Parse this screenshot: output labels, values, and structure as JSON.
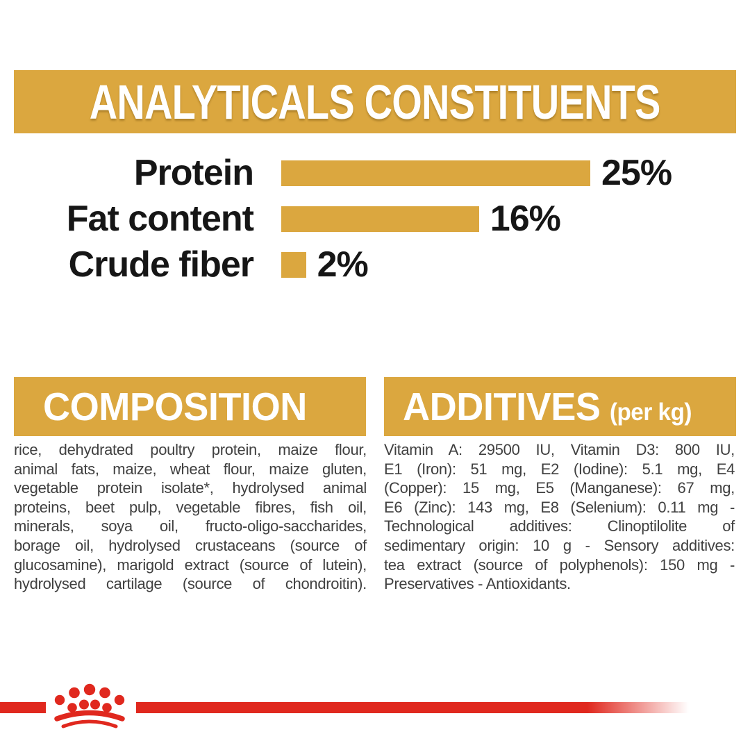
{
  "analyticals": {
    "title": "ANALYTICALS CONSTITUENTS"
  },
  "chart_data": {
    "type": "bar",
    "orientation": "horizontal",
    "categories": [
      "Protein",
      "Fat content",
      "Crude fiber"
    ],
    "values": [
      25,
      16,
      2
    ],
    "value_labels": [
      "25%",
      "16%",
      "2%"
    ],
    "unit": "%",
    "xlim": [
      0,
      28
    ],
    "bar_color": "#DBA73F",
    "grid": false,
    "legend": false
  },
  "composition": {
    "heading": "COMPOSITION",
    "lines": [
      "rice, dehydrated poultry protein, maize flour,",
      "animal fats, maize, wheat flour, maize gluten,",
      "vegetable protein isolate*, hydrolysed animal",
      "proteins, beet pulp, vegetable fibres, fish oil,",
      "minerals, soya oil, fructo-oligo-saccharides,",
      "borage oil, hydrolysed crustaceans (source of",
      "glucosamine), marigold extract (source of lutein),",
      "hydrolysed cartilage (source of chondroitin)."
    ]
  },
  "additives": {
    "heading": "ADDITIVES",
    "heading_suffix": "(per kg)",
    "lines": [
      "Vitamin A: 29500 IU, Vitamin D3: 800 IU,",
      "E1 (Iron): 51 mg, E2 (Iodine): 5.1 mg, E4",
      "(Copper): 15 mg, E5 (Manganese): 67 mg,",
      "E6 (Zinc): 143 mg, E8 (Selenium): 0.11 mg -",
      "Technological additives: Clinoptilolite of",
      "sedimentary origin: 10 g - Sensory additives:",
      "tea extract (source of polyphenols): 150 mg -",
      "Preservatives - Antioxidants."
    ]
  },
  "footer": {
    "logo_icon": "royal-canin-crown-icon"
  },
  "colors": {
    "gold": "#DBA73F",
    "red": "#E0281E",
    "heading_text": "#ffffff",
    "label_text": "#161616",
    "body_text": "#404040",
    "background": "#ffffff"
  }
}
